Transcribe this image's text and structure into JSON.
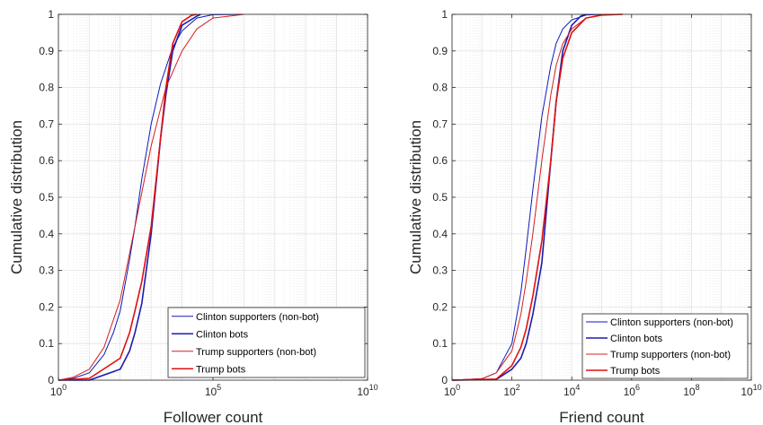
{
  "chart_data": [
    {
      "type": "line",
      "xscale": "log",
      "xlabel": "Follower count",
      "ylabel": "Cumulative distribution",
      "xlim": [
        1,
        10000000000
      ],
      "ylim": [
        0,
        1
      ],
      "xticks": [
        {
          "value": 1,
          "base": "10",
          "exp": "0"
        },
        {
          "value": 100000,
          "base": "10",
          "exp": "5"
        },
        {
          "value": 10000000000,
          "base": "10",
          "exp": "10"
        }
      ],
      "yticks": [
        "0",
        "0.1",
        "0.2",
        "0.3",
        "0.4",
        "0.5",
        "0.6",
        "0.7",
        "0.8",
        "0.9",
        "1"
      ],
      "grid": true,
      "minor_grid": true,
      "legend_position": "bottom-right",
      "series": [
        {
          "name": "Clinton supporters (non-bot)",
          "color": "#0b1ab8",
          "width": 1.0,
          "x": [
            1,
            3,
            10,
            30,
            60,
            100,
            200,
            300,
            500,
            1000,
            2000,
            5000,
            10000,
            30000,
            100000,
            1000000
          ],
          "y": [
            0,
            0.005,
            0.02,
            0.07,
            0.13,
            0.19,
            0.33,
            0.42,
            0.55,
            0.7,
            0.81,
            0.91,
            0.955,
            0.99,
            0.999,
            1
          ]
        },
        {
          "name": "Clinton bots",
          "color": "#1c1cb0",
          "width": 1.6,
          "x": [
            1,
            10,
            100,
            200,
            300,
            500,
            1000,
            2000,
            3000,
            5000,
            10000,
            30000,
            40000
          ],
          "y": [
            0,
            0,
            0.03,
            0.08,
            0.13,
            0.21,
            0.4,
            0.66,
            0.78,
            0.9,
            0.97,
            0.995,
            1
          ]
        },
        {
          "name": "Trump supporters (non-bot)",
          "color": "#d42020",
          "width": 1.0,
          "x": [
            1,
            3,
            10,
            30,
            100,
            300,
            1000,
            3000,
            10000,
            30000,
            100000,
            1000000
          ],
          "y": [
            0,
            0.008,
            0.03,
            0.09,
            0.22,
            0.42,
            0.64,
            0.8,
            0.9,
            0.96,
            0.99,
            1
          ]
        },
        {
          "name": "Trump bots",
          "color": "#e01010",
          "width": 1.6,
          "x": [
            1,
            10,
            100,
            200,
            300,
            500,
            1000,
            2000,
            3000,
            5000,
            10000,
            20000,
            30000
          ],
          "y": [
            0,
            0.005,
            0.06,
            0.13,
            0.19,
            0.27,
            0.42,
            0.66,
            0.8,
            0.92,
            0.98,
            0.997,
            1
          ]
        }
      ]
    },
    {
      "type": "line",
      "xscale": "log",
      "xlabel": "Friend count",
      "ylabel": "Cumulative distribution",
      "xlim": [
        1,
        10000000000
      ],
      "ylim": [
        0,
        1
      ],
      "xticks": [
        {
          "value": 1,
          "base": "10",
          "exp": "0"
        },
        {
          "value": 100,
          "base": "10",
          "exp": "2"
        },
        {
          "value": 10000,
          "base": "10",
          "exp": "4"
        },
        {
          "value": 1000000,
          "base": "10",
          "exp": "6"
        },
        {
          "value": 100000000,
          "base": "10",
          "exp": "8"
        },
        {
          "value": 10000000000,
          "base": "10",
          "exp": "10"
        }
      ],
      "yticks": [
        "0",
        "0.1",
        "0.2",
        "0.3",
        "0.4",
        "0.5",
        "0.6",
        "0.7",
        "0.8",
        "0.9",
        "1"
      ],
      "grid": true,
      "minor_grid": true,
      "legend_position": "bottom-right",
      "series": [
        {
          "name": "Clinton supporters (non-bot)",
          "color": "#0b1ab8",
          "width": 1.0,
          "x": [
            1,
            10,
            30,
            100,
            200,
            300,
            500,
            1000,
            2000,
            3000,
            5000,
            10000,
            30000,
            100000
          ],
          "y": [
            0,
            0.004,
            0.02,
            0.1,
            0.24,
            0.36,
            0.52,
            0.72,
            0.86,
            0.92,
            0.96,
            0.985,
            0.998,
            1
          ]
        },
        {
          "name": "Clinton bots",
          "color": "#1c1cb0",
          "width": 1.6,
          "x": [
            1,
            30,
            100,
            200,
            300,
            500,
            1000,
            2000,
            3000,
            5000,
            10000,
            20000,
            30000
          ],
          "y": [
            0,
            0.002,
            0.03,
            0.06,
            0.1,
            0.18,
            0.32,
            0.6,
            0.76,
            0.9,
            0.97,
            0.995,
            1
          ]
        },
        {
          "name": "Trump supporters (non-bot)",
          "color": "#d42020",
          "width": 1.0,
          "x": [
            1,
            10,
            30,
            100,
            200,
            300,
            500,
            1000,
            2000,
            3000,
            5000,
            10000,
            30000,
            100000,
            300000
          ],
          "y": [
            0,
            0.004,
            0.02,
            0.08,
            0.18,
            0.27,
            0.4,
            0.6,
            0.78,
            0.86,
            0.92,
            0.96,
            0.99,
            0.999,
            1
          ]
        },
        {
          "name": "Trump bots",
          "color": "#e01010",
          "width": 1.6,
          "x": [
            1,
            30,
            100,
            200,
            300,
            500,
            1000,
            2000,
            3000,
            5000,
            10000,
            30000,
            100000,
            500000
          ],
          "y": [
            0,
            0.003,
            0.04,
            0.09,
            0.14,
            0.23,
            0.38,
            0.6,
            0.76,
            0.88,
            0.95,
            0.99,
            0.998,
            1
          ]
        }
      ]
    }
  ]
}
